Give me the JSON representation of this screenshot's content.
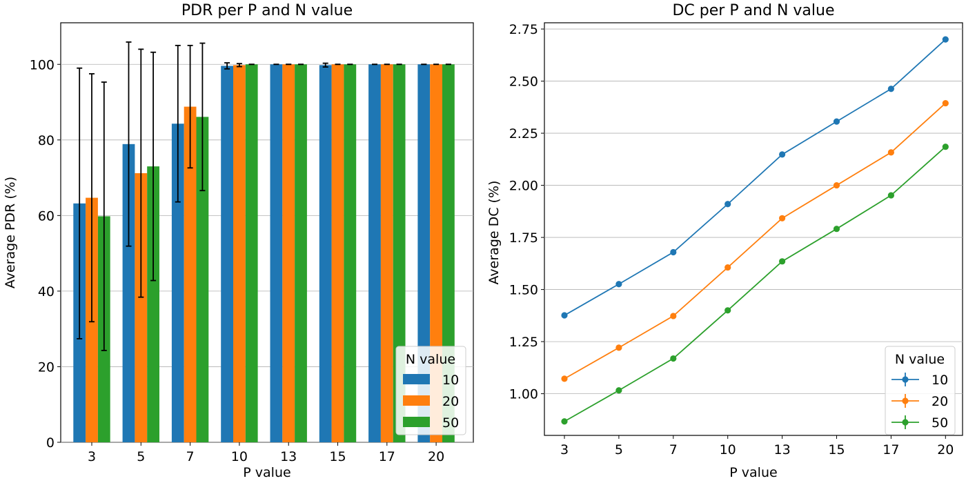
{
  "chart_data": [
    {
      "type": "bar",
      "title": "PDR per P and N value",
      "xlabel": "P value",
      "ylabel": "Average PDR (%)",
      "categories": [
        "3",
        "5",
        "7",
        "10",
        "13",
        "15",
        "17",
        "20"
      ],
      "ylim": [
        0,
        111
      ],
      "yticks": [
        0,
        20,
        40,
        60,
        80,
        100
      ],
      "grid": "y",
      "legend": {
        "title": "N value",
        "placement": "lower-right"
      },
      "series": [
        {
          "name": "10",
          "color": "#1f77b4",
          "values": [
            63.2,
            78.9,
            84.3,
            99.6,
            100,
            99.8,
            100,
            100
          ],
          "errors": [
            35.8,
            27.0,
            20.7,
            0.8,
            0,
            0.5,
            0,
            0
          ]
        },
        {
          "name": "20",
          "color": "#ff7f0e",
          "values": [
            64.7,
            71.2,
            88.8,
            99.8,
            100,
            100,
            100,
            100
          ],
          "errors": [
            32.8,
            32.8,
            16.2,
            0.4,
            0,
            0,
            0,
            0
          ]
        },
        {
          "name": "50",
          "color": "#2ca02c",
          "values": [
            59.8,
            73.0,
            86.1,
            100,
            100,
            100,
            100,
            100
          ],
          "errors": [
            35.5,
            30.2,
            19.5,
            0,
            0,
            0,
            0,
            0
          ]
        }
      ]
    },
    {
      "type": "line",
      "title": "DC per P and N value",
      "xlabel": "P value",
      "ylabel": "Average DC (%)",
      "categories": [
        "3",
        "5",
        "7",
        "10",
        "13",
        "15",
        "17",
        "20"
      ],
      "ylim": [
        0.8,
        2.78
      ],
      "yticks": [
        "1.00",
        "1.25",
        "1.50",
        "1.75",
        "2.00",
        "2.25",
        "2.50",
        "2.75"
      ],
      "grid": "y",
      "legend": {
        "title": "N value",
        "placement": "lower-right"
      },
      "series": [
        {
          "name": "10",
          "color": "#1f77b4",
          "values": [
            1.376,
            1.526,
            1.679,
            1.91,
            2.148,
            2.306,
            2.463,
            2.7
          ]
        },
        {
          "name": "20",
          "color": "#ff7f0e",
          "values": [
            1.072,
            1.221,
            1.373,
            1.606,
            1.842,
            2.0,
            2.158,
            2.394
          ]
        },
        {
          "name": "50",
          "color": "#2ca02c",
          "values": [
            0.867,
            1.016,
            1.169,
            1.4,
            1.635,
            1.791,
            1.952,
            2.185
          ]
        }
      ]
    }
  ]
}
